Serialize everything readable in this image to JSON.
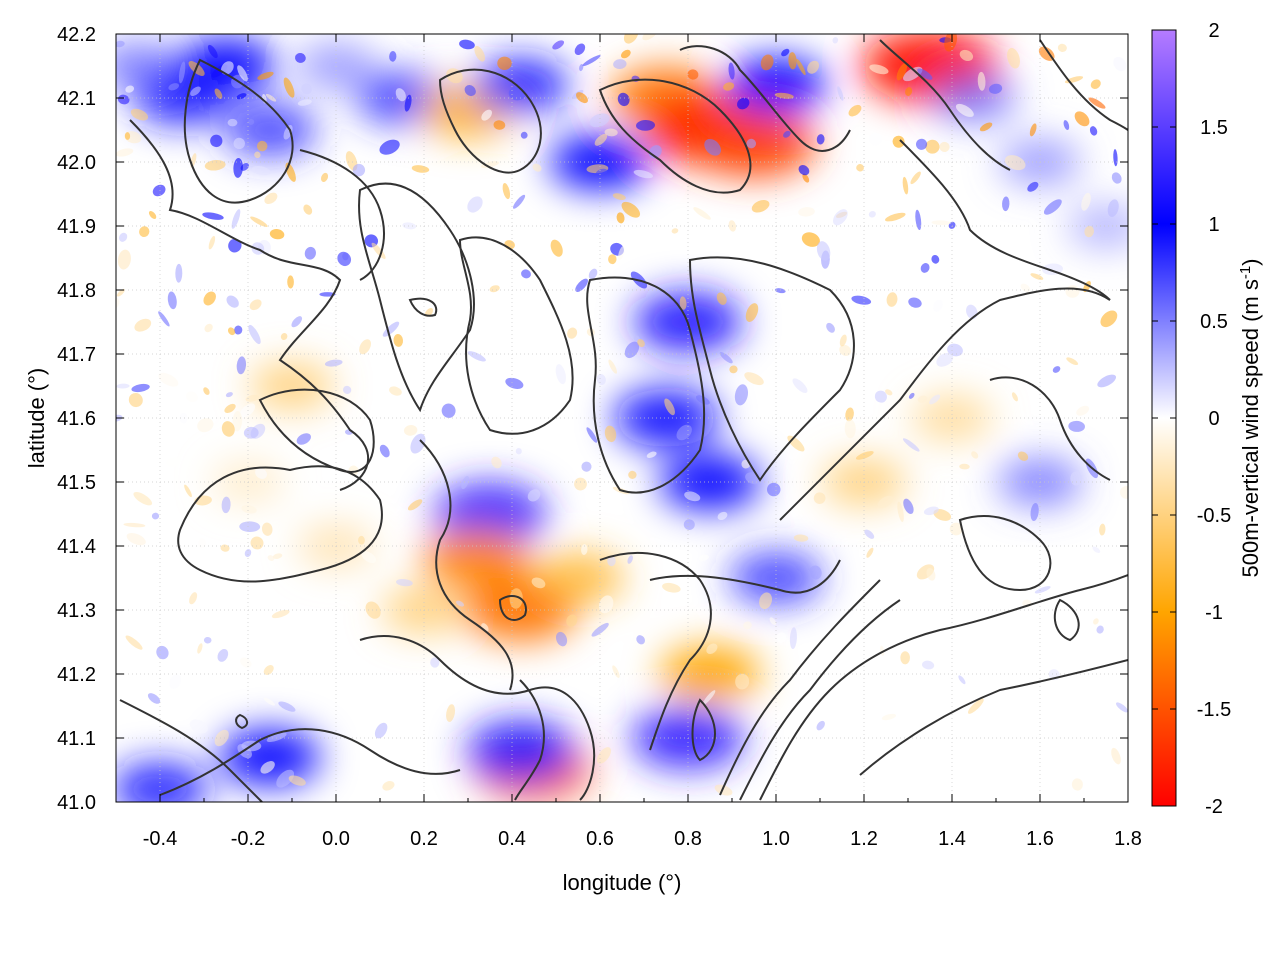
{
  "chart_data": {
    "type": "heatmap",
    "title": "",
    "xlabel": "longitude (°)",
    "ylabel": "latitude (°)",
    "colorbar_label_main": "500m-vertical wind speed (m s",
    "colorbar_label_sup": "-1",
    "colorbar_label_close": ")",
    "xlim": [
      -0.5,
      1.8
    ],
    "ylim": [
      41.0,
      42.2
    ],
    "x_ticks": [
      -0.4,
      -0.2,
      0.0,
      0.2,
      0.4,
      0.6,
      0.8,
      1.0,
      1.2,
      1.4,
      1.6,
      1.8
    ],
    "x_tick_labels": [
      "-0.4",
      "-0.2",
      "0.0",
      "0.2",
      "0.4",
      "0.6",
      "0.8",
      "1.0",
      "1.2",
      "1.4",
      "1.6",
      "1.8"
    ],
    "y_ticks": [
      41.0,
      41.1,
      41.2,
      41.3,
      41.4,
      41.5,
      41.6,
      41.7,
      41.8,
      41.9,
      42.0,
      42.1,
      42.2
    ],
    "y_tick_labels": [
      "41.0",
      "41.1",
      "41.2",
      "41.3",
      "41.4",
      "41.5",
      "41.6",
      "41.7",
      "41.8",
      "41.9",
      "42.0",
      "42.1",
      "42.2"
    ],
    "color_range": [
      -2,
      2
    ],
    "colorbar_ticks": [
      2,
      1.5,
      1,
      0.5,
      0,
      -0.5,
      -1,
      -1.5,
      -2
    ],
    "colorbar_tick_labels": [
      "2",
      "1.5",
      "1",
      "0.5",
      "0",
      "-0.5",
      "-1",
      "-1.5",
      "-2"
    ],
    "colormap_stops": [
      {
        "value": -2.0,
        "color": "#ff0000"
      },
      {
        "value": -1.0,
        "color": "#ffa500"
      },
      {
        "value": 0.0,
        "color": "#ffffff"
      },
      {
        "value": 1.0,
        "color": "#0000ff"
      },
      {
        "value": 2.0,
        "color": "#b57cff"
      }
    ],
    "grid": true,
    "contour_color": "#333333",
    "cells": [
      {
        "lon": -0.45,
        "lat": 42.15,
        "w": 0.6
      },
      {
        "lon": -0.35,
        "lat": 42.1,
        "w": 0.9
      },
      {
        "lon": -0.25,
        "lat": 42.15,
        "w": 1.0
      },
      {
        "lon": -0.15,
        "lat": 42.05,
        "w": 0.8
      },
      {
        "lon": 0.0,
        "lat": 42.15,
        "w": 0.5
      },
      {
        "lon": 0.15,
        "lat": 42.1,
        "w": 0.8
      },
      {
        "lon": 0.3,
        "lat": 42.08,
        "w": -0.9
      },
      {
        "lon": 0.42,
        "lat": 42.12,
        "w": 0.9
      },
      {
        "lon": 0.6,
        "lat": 42.0,
        "w": 1.0
      },
      {
        "lon": 0.75,
        "lat": 42.1,
        "w": -1.3
      },
      {
        "lon": 0.85,
        "lat": 42.05,
        "w": -1.8
      },
      {
        "lon": 0.95,
        "lat": 42.03,
        "w": -1.6
      },
      {
        "lon": 1.0,
        "lat": 42.12,
        "w": 1.0
      },
      {
        "lon": 1.35,
        "lat": 42.15,
        "w": -1.9
      },
      {
        "lon": 1.45,
        "lat": 42.1,
        "w": 0.6
      },
      {
        "lon": 1.6,
        "lat": 42.0,
        "w": 0.5
      },
      {
        "lon": 1.75,
        "lat": 41.9,
        "w": 0.4
      },
      {
        "lon": 0.8,
        "lat": 41.75,
        "w": 1.2
      },
      {
        "lon": 0.75,
        "lat": 41.6,
        "w": 1.1
      },
      {
        "lon": 0.85,
        "lat": 41.5,
        "w": 1.0
      },
      {
        "lon": 0.35,
        "lat": 41.45,
        "w": 1.3
      },
      {
        "lon": 0.32,
        "lat": 41.38,
        "w": -1.2
      },
      {
        "lon": 0.42,
        "lat": 41.3,
        "w": -1.3
      },
      {
        "lon": 0.55,
        "lat": 41.35,
        "w": -0.8
      },
      {
        "lon": -0.2,
        "lat": 41.5,
        "w": -0.3
      },
      {
        "lon": -0.1,
        "lat": 41.65,
        "w": -0.6
      },
      {
        "lon": 0.0,
        "lat": 41.4,
        "w": -0.4
      },
      {
        "lon": 0.2,
        "lat": 41.3,
        "w": -0.6
      },
      {
        "lon": 0.45,
        "lat": 41.05,
        "w": -1.4
      },
      {
        "lon": 0.42,
        "lat": 41.08,
        "w": 1.2
      },
      {
        "lon": 0.8,
        "lat": 41.1,
        "w": 1.3
      },
      {
        "lon": 0.85,
        "lat": 41.2,
        "w": -1.0
      },
      {
        "lon": 1.0,
        "lat": 41.35,
        "w": 0.8
      },
      {
        "lon": 1.2,
        "lat": 41.5,
        "w": -0.6
      },
      {
        "lon": 1.4,
        "lat": 41.6,
        "w": -0.5
      },
      {
        "lon": 1.6,
        "lat": 41.5,
        "w": 0.6
      },
      {
        "lon": -0.15,
        "lat": 41.07,
        "w": 1.0
      },
      {
        "lon": -0.4,
        "lat": 41.02,
        "w": 0.9
      },
      {
        "lon": 1.3,
        "lat": 41.1,
        "w": 0.0
      },
      {
        "lon": 1.6,
        "lat": 41.15,
        "w": 0.0
      }
    ]
  }
}
